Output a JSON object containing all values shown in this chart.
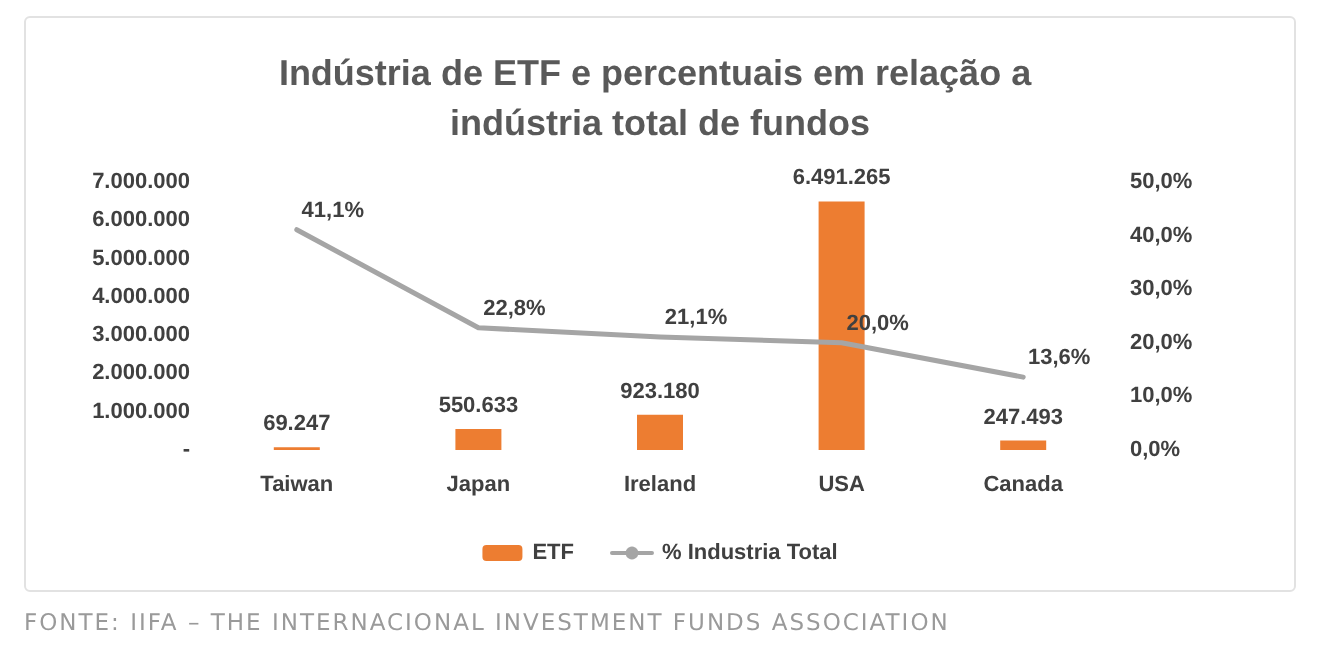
{
  "chart_data": {
    "type": "bar",
    "title": "Indústria de ETF e percentuais em relação a indústria total de fundos",
    "categories": [
      "Taiwan",
      "Japan",
      "Ireland",
      "USA",
      "Canada"
    ],
    "series": [
      {
        "name": "ETF",
        "color": "#ed7d31",
        "values": [
          69247,
          550633,
          923180,
          6491265,
          247493
        ],
        "value_labels": [
          "69.247",
          "550.633",
          "923.180",
          "6.491.265",
          "247.493"
        ]
      },
      {
        "name": "% Industria Total",
        "type": "line",
        "axis": "y2",
        "color": "#a5a5a5",
        "values": [
          41.1,
          22.8,
          21.1,
          20.0,
          13.6
        ],
        "value_labels": [
          "41,1%",
          "22,8%",
          "21,1%",
          "20,0%",
          "13,6%"
        ],
        "marker": "none"
      }
    ],
    "ylim": [
      0,
      7000000
    ],
    "yticks": [
      {
        "value": 0,
        "label": "-"
      },
      {
        "value": 1000000,
        "label": "1.000.000"
      },
      {
        "value": 2000000,
        "label": "2.000.000"
      },
      {
        "value": 3000000,
        "label": "3.000.000"
      },
      {
        "value": 4000000,
        "label": "4.000.000"
      },
      {
        "value": 5000000,
        "label": "5.000.000"
      },
      {
        "value": 6000000,
        "label": "6.000.000"
      },
      {
        "value": 7000000,
        "label": "7.000.000"
      }
    ],
    "y2lim": [
      0,
      50
    ],
    "y2ticks": [
      {
        "value": 0,
        "label": "0,0%"
      },
      {
        "value": 10,
        "label": "10,0%"
      },
      {
        "value": 20,
        "label": "20,0%"
      },
      {
        "value": 30,
        "label": "30,0%"
      },
      {
        "value": 40,
        "label": "40,0%"
      },
      {
        "value": 50,
        "label": "50,0%"
      }
    ],
    "grid": false,
    "legend": "bottom",
    "annotations": [
      "FONTE: IIFA – THE INTERNACIONAL INVESTMENT FUNDS ASSOCIATION"
    ]
  }
}
